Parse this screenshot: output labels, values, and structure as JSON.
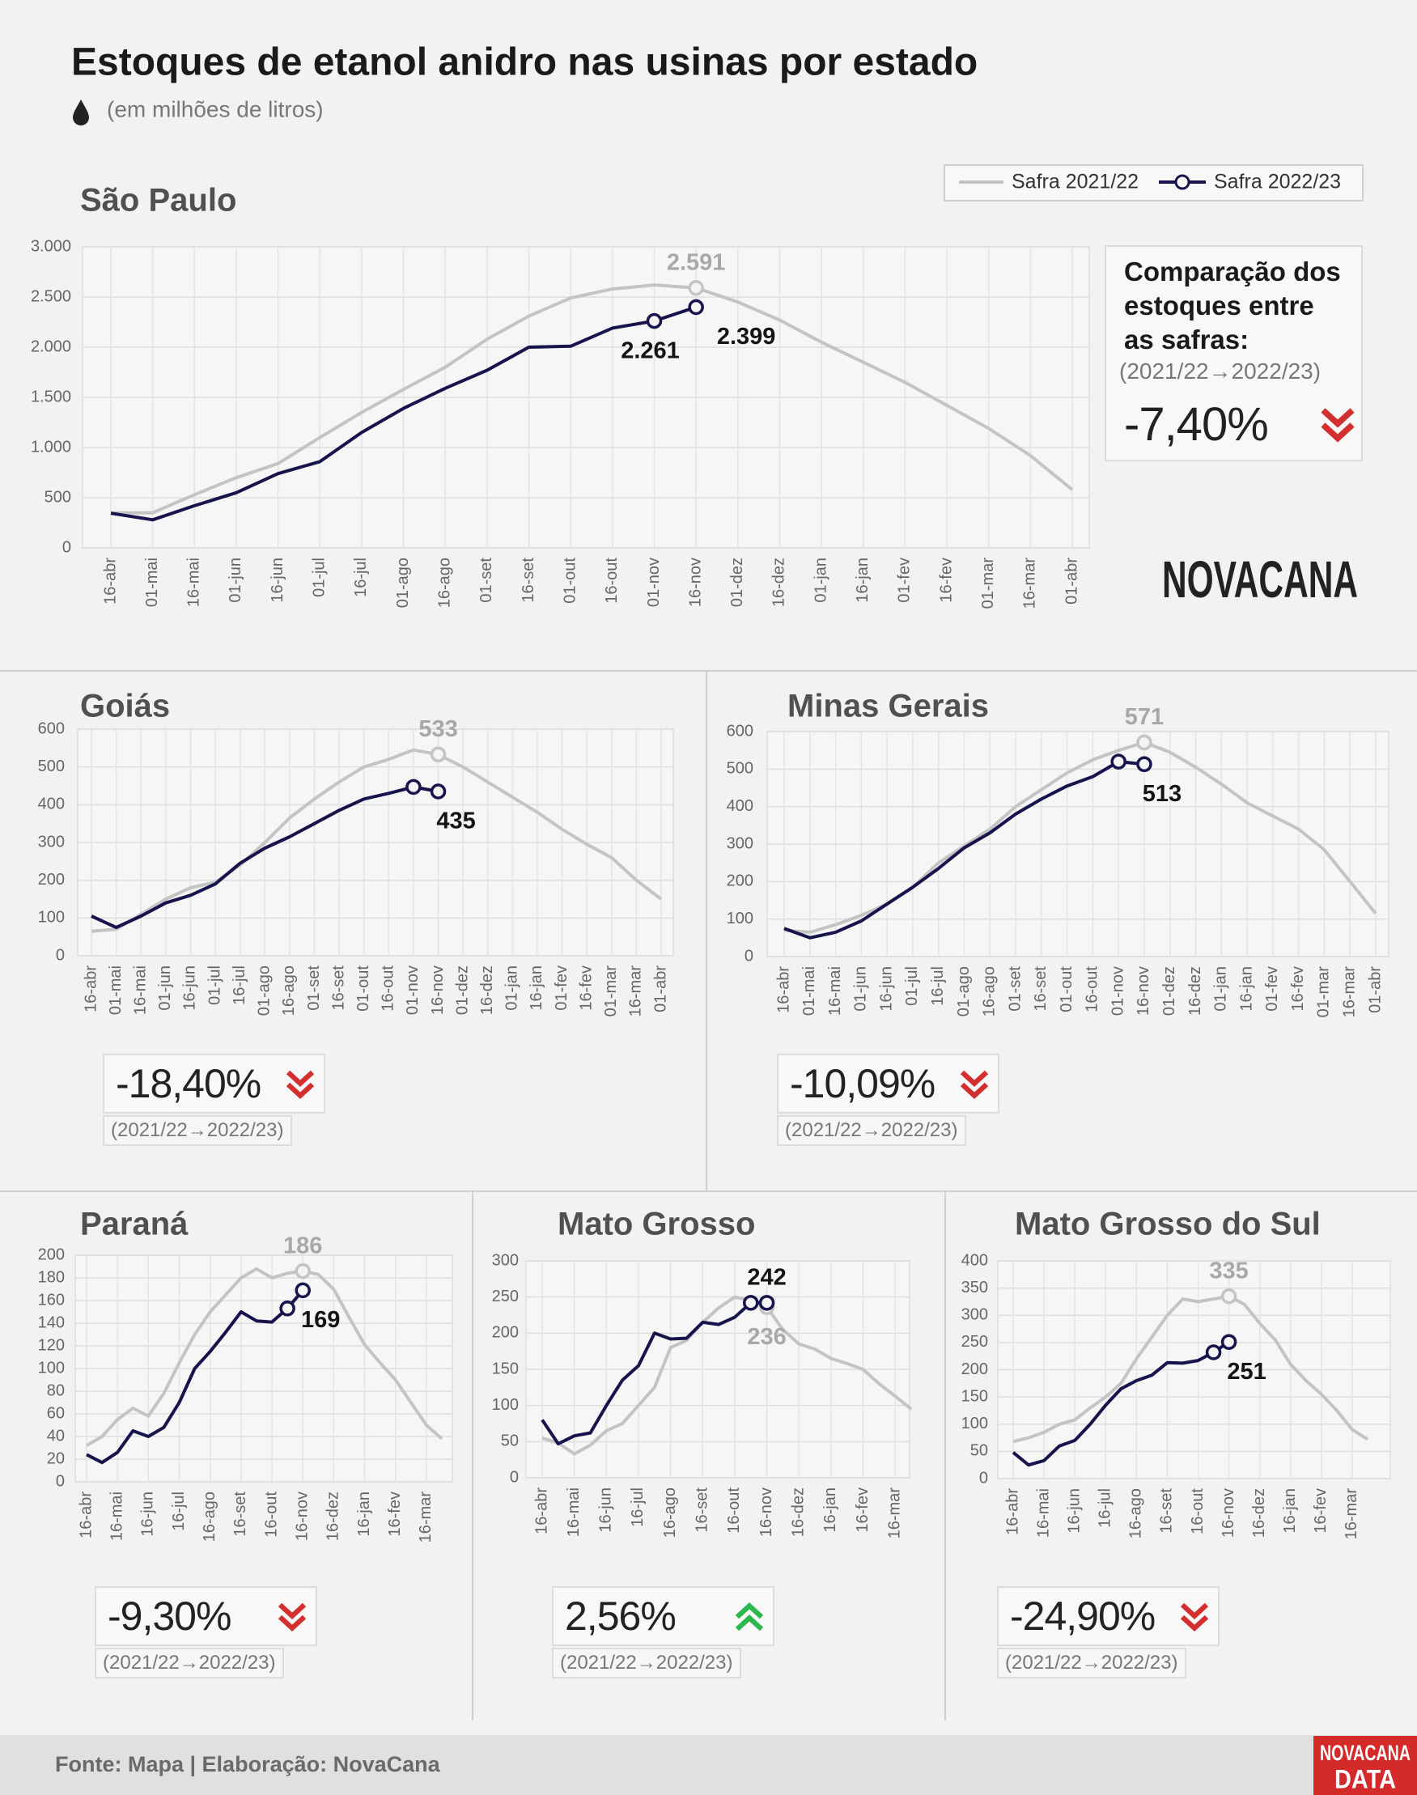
{
  "title": "Estoques de etanol anidro nas usinas por estado",
  "subtitle": "(em milhões de litros)",
  "comparison_heading": "Comparação dos estoques entre as safras:",
  "comparison_period": "(2021/22→2022/23)",
  "logo": "NOVACANA",
  "footer": {
    "source": "Fonte: Mapa | Elaboração: NovaCana",
    "logo": [
      "NOVACANA",
      "DATA"
    ]
  },
  "chart_data": [
    {
      "type": "line",
      "title": "São Paulo",
      "categories": [
        "16-abr",
        "01-mai",
        "16-mai",
        "01-jun",
        "16-jun",
        "01-jul",
        "16-jul",
        "01-ago",
        "16-ago",
        "01-set",
        "16-set",
        "01-out",
        "16-out",
        "01-nov",
        "16-nov",
        "01-dez",
        "16-dez",
        "01-jan",
        "16-jan",
        "01-fev",
        "16-fev",
        "01-mar",
        "16-mar",
        "01-abr"
      ],
      "series": [
        {
          "name": "Safra 2021/22",
          "color": "#c4c4c4",
          "values": [
            350,
            350,
            530,
            700,
            840,
            1100,
            1350,
            1580,
            1800,
            2080,
            2310,
            2490,
            2580,
            2620,
            2591,
            2450,
            2270,
            2050,
            1850,
            1650,
            1420,
            1190,
            920,
            580
          ],
          "value_labels": [
            null,
            null,
            null,
            null,
            null,
            null,
            null,
            null,
            null,
            null,
            null,
            null,
            null,
            null,
            "2.591",
            null,
            null,
            null,
            null,
            null,
            null,
            null,
            null,
            null
          ]
        },
        {
          "name": "Safra 2022/23",
          "color": "#16134d",
          "values": [
            345,
            280,
            420,
            550,
            740,
            860,
            1150,
            1390,
            1590,
            1770,
            2000,
            2010,
            2190,
            2261,
            2399,
            null,
            null,
            null,
            null,
            null,
            null,
            null,
            null,
            null
          ],
          "value_labels": [
            null,
            null,
            null,
            null,
            null,
            null,
            null,
            null,
            null,
            null,
            null,
            null,
            null,
            "2.261",
            "2.399",
            null,
            null,
            null,
            null,
            null,
            null,
            null,
            null,
            null
          ]
        }
      ],
      "ylim": [
        0,
        3000
      ],
      "yticks": [
        0,
        500,
        {
          "value": 1000,
          "label": "1.000"
        },
        {
          "value": 1500,
          "label": "1.500"
        },
        {
          "value": 2000,
          "label": "2.000"
        },
        {
          "value": 2500,
          "label": "2.500"
        },
        {
          "value": 3000,
          "label": "3.000"
        }
      ],
      "grid": true,
      "change": -7.4,
      "change_label": "-7,40%"
    },
    {
      "type": "line",
      "title": "Goiás",
      "categories": [
        "16-abr",
        "01-mai",
        "16-mai",
        "01-jun",
        "16-jun",
        "01-jul",
        "16-jul",
        "01-ago",
        "16-ago",
        "01-set",
        "16-set",
        "01-out",
        "16-out",
        "01-nov",
        "16-nov",
        "01-dez",
        "16-dez",
        "01-jan",
        "16-jan",
        "01-fev",
        "16-fev",
        "01-mar",
        "16-mar",
        "01-abr"
      ],
      "series": [
        {
          "color": "#c4c4c4",
          "values": [
            65,
            70,
            110,
            150,
            180,
            195,
            240,
            300,
            365,
            415,
            460,
            500,
            520,
            545,
            533,
            500,
            460,
            420,
            380,
            335,
            295,
            260,
            200,
            150
          ],
          "value_labels": [
            null,
            null,
            null,
            null,
            null,
            null,
            null,
            null,
            null,
            null,
            null,
            null,
            null,
            null,
            "533",
            null,
            null,
            null,
            null,
            null,
            null,
            null,
            null,
            null
          ]
        },
        {
          "color": "#16134d",
          "values": [
            105,
            75,
            105,
            140,
            160,
            190,
            245,
            285,
            315,
            350,
            385,
            415,
            430,
            447,
            435,
            null,
            null,
            null,
            null,
            null,
            null,
            null,
            null,
            null
          ],
          "value_labels": [
            null,
            null,
            null,
            null,
            null,
            null,
            null,
            null,
            null,
            null,
            null,
            null,
            null,
            null,
            "435",
            null,
            null,
            null,
            null,
            null,
            null,
            null,
            null,
            null
          ]
        }
      ],
      "ylim": [
        0,
        600
      ],
      "yticks": [
        0,
        100,
        200,
        300,
        400,
        500,
        600
      ],
      "grid": true,
      "change": -18.4,
      "change_label": "-18,40%"
    },
    {
      "type": "line",
      "title": "Minas Gerais",
      "categories": [
        "16-abr",
        "01-mai",
        "16-mai",
        "01-jun",
        "16-jun",
        "01-jul",
        "16-jul",
        "01-ago",
        "16-ago",
        "01-set",
        "16-set",
        "01-out",
        "16-out",
        "01-nov",
        "16-nov",
        "01-dez",
        "16-dez",
        "01-jan",
        "16-jan",
        "01-fev",
        "16-fev",
        "01-mar",
        "16-mar",
        "01-abr"
      ],
      "series": [
        {
          "color": "#c4c4c4",
          "values": [
            70,
            65,
            85,
            110,
            140,
            185,
            250,
            295,
            340,
            400,
            445,
            490,
            525,
            550,
            571,
            545,
            505,
            460,
            410,
            375,
            340,
            285,
            200,
            115
          ],
          "value_labels": [
            null,
            null,
            null,
            null,
            null,
            null,
            null,
            null,
            null,
            null,
            null,
            null,
            null,
            null,
            "571",
            null,
            null,
            null,
            null,
            null,
            null,
            null,
            null,
            null
          ]
        },
        {
          "color": "#16134d",
          "values": [
            75,
            50,
            65,
            95,
            140,
            185,
            235,
            290,
            330,
            380,
            420,
            455,
            480,
            520,
            513,
            null,
            null,
            null,
            null,
            null,
            null,
            null,
            null,
            null
          ],
          "value_labels": [
            null,
            null,
            null,
            null,
            null,
            null,
            null,
            null,
            null,
            null,
            null,
            null,
            null,
            null,
            "513",
            null,
            null,
            null,
            null,
            null,
            null,
            null,
            null,
            null
          ]
        }
      ],
      "ylim": [
        0,
        600
      ],
      "yticks": [
        0,
        100,
        200,
        300,
        400,
        500,
        600
      ],
      "grid": true,
      "change": -10.09,
      "change_label": "-10,09%"
    },
    {
      "type": "line",
      "title": "Paraná",
      "categories": [
        "16-abr",
        null,
        "16-mai",
        null,
        "16-jun",
        null,
        "16-jul",
        null,
        "16-ago",
        null,
        "16-set",
        null,
        "16-out",
        null,
        "16-nov",
        null,
        "16-dez",
        null,
        "16-jan",
        null,
        "16-fev",
        null,
        "16-mar",
        null
      ],
      "series": [
        {
          "color": "#c4c4c4",
          "values": [
            32,
            40,
            55,
            65,
            58,
            78,
            105,
            130,
            150,
            165,
            180,
            188,
            180,
            184,
            186,
            183,
            170,
            145,
            121,
            105,
            90,
            70,
            50,
            38
          ],
          "value_labels": [
            null,
            null,
            null,
            null,
            null,
            null,
            null,
            null,
            null,
            null,
            null,
            null,
            null,
            null,
            "186",
            null,
            null,
            null,
            null,
            null,
            null,
            null,
            null,
            null
          ]
        },
        {
          "color": "#16134d",
          "values": [
            24,
            17,
            26,
            45,
            40,
            48,
            70,
            100,
            115,
            132,
            150,
            142,
            141,
            153,
            169,
            null,
            null,
            null,
            null,
            null,
            null,
            null,
            null,
            null
          ],
          "value_labels": [
            null,
            null,
            null,
            null,
            null,
            null,
            null,
            null,
            null,
            null,
            null,
            null,
            null,
            null,
            "169",
            null,
            null,
            null,
            null,
            null,
            null,
            null,
            null,
            null
          ]
        }
      ],
      "ylim": [
        0,
        200
      ],
      "yticks": [
        0,
        20,
        40,
        60,
        80,
        100,
        120,
        140,
        160,
        180,
        200
      ],
      "grid": true,
      "change": -9.3,
      "change_label": "-9,30%"
    },
    {
      "type": "line",
      "title": "Mato Grosso",
      "categories": [
        "16-abr",
        null,
        "16-mai",
        null,
        "16-jun",
        null,
        "16-jul",
        null,
        "16-ago",
        null,
        "16-set",
        null,
        "16-out",
        null,
        "16-nov",
        null,
        "16-dez",
        null,
        "16-jan",
        null,
        "16-fev",
        null,
        "16-mar",
        null
      ],
      "series": [
        {
          "color": "#c4c4c4",
          "values": [
            55,
            48,
            33,
            45,
            65,
            75,
            100,
            125,
            180,
            190,
            215,
            235,
            250,
            245,
            236,
            205,
            185,
            178,
            165,
            158,
            150,
            130,
            113,
            95
          ],
          "value_labels": [
            null,
            null,
            null,
            null,
            null,
            null,
            null,
            null,
            null,
            null,
            null,
            null,
            null,
            null,
            "236",
            null,
            null,
            null,
            null,
            null,
            null,
            null,
            null,
            null
          ]
        },
        {
          "color": "#16134d",
          "values": [
            80,
            47,
            58,
            62,
            100,
            135,
            155,
            200,
            192,
            193,
            215,
            212,
            222,
            242,
            242,
            null,
            null,
            null,
            null,
            null,
            null,
            null,
            null,
            null
          ],
          "value_labels": [
            null,
            null,
            null,
            null,
            null,
            null,
            null,
            null,
            null,
            null,
            null,
            null,
            null,
            null,
            "242",
            null,
            null,
            null,
            null,
            null,
            null,
            null,
            null,
            null
          ]
        }
      ],
      "ylim": [
        0,
        300
      ],
      "yticks": [
        0,
        50,
        100,
        150,
        200,
        250,
        300
      ],
      "grid": true,
      "change": 2.56,
      "change_label": "2,56%"
    },
    {
      "type": "line",
      "title": "Mato Grosso do Sul",
      "categories": [
        "16-abr",
        null,
        "16-mai",
        null,
        "16-jun",
        null,
        "16-jul",
        null,
        "16-ago",
        null,
        "16-set",
        null,
        "16-out",
        null,
        "16-nov",
        null,
        "16-dez",
        null,
        "16-jan",
        null,
        "16-fev",
        null,
        "16-mar",
        null
      ],
      "series": [
        {
          "color": "#c4c4c4",
          "values": [
            68,
            75,
            85,
            100,
            108,
            130,
            150,
            175,
            220,
            260,
            300,
            330,
            325,
            330,
            335,
            320,
            285,
            255,
            210,
            180,
            155,
            125,
            90,
            72
          ],
          "value_labels": [
            null,
            null,
            null,
            null,
            null,
            null,
            null,
            null,
            null,
            null,
            null,
            null,
            null,
            null,
            "335",
            null,
            null,
            null,
            null,
            null,
            null,
            null,
            null,
            null
          ]
        },
        {
          "color": "#16134d",
          "values": [
            48,
            25,
            33,
            60,
            70,
            100,
            135,
            165,
            180,
            190,
            213,
            212,
            217,
            232,
            251,
            null,
            null,
            null,
            null,
            null,
            null,
            null,
            null,
            null
          ],
          "value_labels": [
            null,
            null,
            null,
            null,
            null,
            null,
            null,
            null,
            null,
            null,
            null,
            null,
            null,
            null,
            "251",
            null,
            null,
            null,
            null,
            null,
            null,
            null,
            null,
            null
          ]
        }
      ],
      "ylim": [
        0,
        400
      ],
      "yticks": [
        0,
        50,
        100,
        150,
        200,
        250,
        300,
        350,
        400
      ],
      "grid": true,
      "change": -24.9,
      "change_label": "-24,90%"
    }
  ]
}
